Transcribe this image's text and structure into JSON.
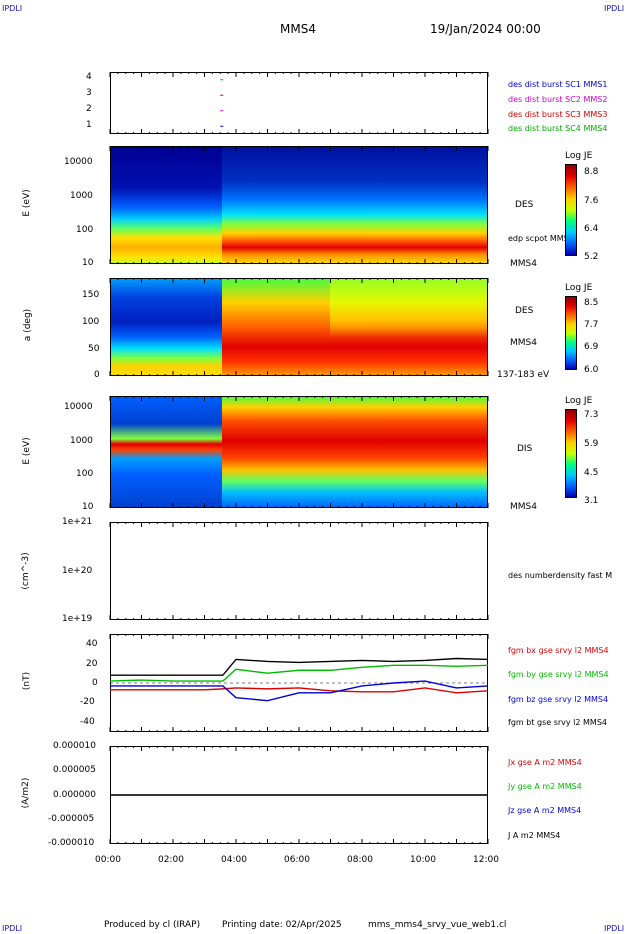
{
  "corners": {
    "top_left": "IPDLI",
    "top_right": "IPDLI",
    "bottom_left": "IPDLI",
    "bottom_right": "IPDLI"
  },
  "header": {
    "spacecraft": "MMS4",
    "date": "19/Jan/2024 00:00"
  },
  "footer": {
    "produced": "Produced by cl (IRAP)",
    "printed": "Printing date: 02/Apr/2025",
    "file": "mms_mms4_srvy_vue_web1.cl"
  },
  "panels": {
    "p1": {
      "yticks": [
        "4",
        "3",
        "2",
        "1"
      ],
      "legend": [
        {
          "text": "des dist burst SC1 MMS1",
          "color": "#0000cc"
        },
        {
          "text": "des dist burst SC2 MMS2",
          "color": "#cc00cc"
        },
        {
          "text": "des dist burst SC3 MMS3",
          "color": "#cc0000"
        },
        {
          "text": "des dist burst SC4 MMS4",
          "color": "#00aa00"
        }
      ]
    },
    "p2": {
      "ylabel": "E (eV)",
      "yticks": [
        "10000",
        "1000",
        "100",
        "10"
      ],
      "label_species": "DES",
      "label_extra": "edp scpot MMS4",
      "label_sc": "MMS4",
      "colorbar": {
        "title": "Log JE",
        "ticks": [
          "8.8",
          "7.6",
          "6.4",
          "5.2"
        ]
      }
    },
    "p3": {
      "ylabel": "a (deg)",
      "yticks": [
        "150",
        "100",
        "50",
        "0"
      ],
      "label_species": "DES",
      "label_sc": "MMS4",
      "label_range": "137-183 eV",
      "colorbar": {
        "title": "Log JE",
        "ticks": [
          "8.5",
          "7.7",
          "6.9",
          "6.0"
        ]
      }
    },
    "p4": {
      "ylabel": "E (eV)",
      "yticks": [
        "10000",
        "1000",
        "100",
        "10"
      ],
      "label_species": "DIS",
      "label_sc": "MMS4",
      "colorbar": {
        "title": "Log JE",
        "ticks": [
          "7.3",
          "5.9",
          "4.5",
          "3.1"
        ]
      }
    },
    "p5": {
      "ylabel": "(cm^-3)",
      "yticks": [
        "1e+21",
        "1e+20",
        "1e+19"
      ],
      "legend": [
        {
          "text": "des numberdensity fast M",
          "color": "#000000"
        }
      ]
    },
    "p6": {
      "ylabel": "(nT)",
      "yticks": [
        "40",
        "20",
        "0",
        "-20",
        "-40"
      ],
      "legend": [
        {
          "text": "fgm bx gse srvy l2 MMS4",
          "color": "#dd0000"
        },
        {
          "text": "fgm by gse srvy l2 MMS4",
          "color": "#00bb00"
        },
        {
          "text": "fgm bz gse srvy l2 MMS4",
          "color": "#0000dd"
        },
        {
          "text": "fgm bt gse srvy l2 MMS4",
          "color": "#000000"
        }
      ]
    },
    "p7": {
      "ylabel": "(A/m2)",
      "yticks": [
        "0.000010",
        "0.000005",
        "0.000000",
        "-0.000005",
        "-0.000010"
      ],
      "legend": [
        {
          "text": "Jx gse A m2 MMS4",
          "color": "#dd0000"
        },
        {
          "text": "Jy gse A m2 MMS4",
          "color": "#00bb00"
        },
        {
          "text": "Jz gse A m2 MMS4",
          "color": "#0000dd"
        },
        {
          "text": "J A m2 MMS4",
          "color": "#000000"
        }
      ]
    }
  },
  "xticks": [
    "00:00",
    "02:00",
    "04:00",
    "06:00",
    "08:00",
    "10:00",
    "12:00"
  ],
  "chart_data": [
    {
      "type": "scatter",
      "x_label": "time",
      "x_range": [
        "00:00",
        "12:00"
      ],
      "ylim": [
        0.5,
        4.5
      ],
      "series": [
        {
          "name": "des dist burst SC1 MMS1",
          "x": [
            "03:30"
          ],
          "y": [
            1
          ]
        },
        {
          "name": "des dist burst SC2 MMS2",
          "x": [
            "03:30"
          ],
          "y": [
            2
          ]
        },
        {
          "name": "des dist burst SC3 MMS3",
          "x": [
            "03:30"
          ],
          "y": [
            3
          ]
        },
        {
          "name": "des dist burst SC4 MMS4",
          "x": [
            "03:30"
          ],
          "y": [
            4
          ]
        }
      ]
    },
    {
      "type": "heatmap",
      "title": "DES",
      "ylabel": "E (eV)",
      "yscale": "log",
      "ylim": [
        10,
        20000
      ],
      "x_range": [
        "00:00",
        "12:00"
      ],
      "colorbar": {
        "label": "Log JE",
        "range": [
          5.2,
          8.8
        ]
      },
      "boundary_time": "03:35",
      "peak_energy_before": 50,
      "peak_energy_after": 90
    },
    {
      "type": "heatmap",
      "title": "DES",
      "ylabel": "a (deg)",
      "ylim": [
        0,
        180
      ],
      "x_range": [
        "00:00",
        "12:00"
      ],
      "colorbar": {
        "label": "Log JE",
        "range": [
          6.0,
          8.5
        ]
      },
      "energy_range": "137-183 eV",
      "boundary_time": "03:35"
    },
    {
      "type": "heatmap",
      "title": "DIS",
      "ylabel": "E (eV)",
      "yscale": "log",
      "ylim": [
        10,
        20000
      ],
      "x_range": [
        "00:00",
        "12:00"
      ],
      "colorbar": {
        "label": "Log JE",
        "range": [
          3.1,
          7.3
        ]
      },
      "boundary_time": "03:35",
      "peak_energy_before": 700,
      "peak_energy_after": 1000
    },
    {
      "type": "line",
      "ylabel": "(cm^-3)",
      "yscale": "log",
      "ylim": [
        1e+19,
        1e+21
      ],
      "series": [
        {
          "name": "des numberdensity fast M",
          "x": [],
          "y": []
        }
      ]
    },
    {
      "type": "line",
      "ylabel": "(nT)",
      "ylim": [
        -50,
        50
      ],
      "x": [
        "00:00",
        "01:00",
        "02:00",
        "03:00",
        "03:35",
        "04:00",
        "05:00",
        "06:00",
        "07:00",
        "08:00",
        "09:00",
        "10:00",
        "11:00",
        "12:00"
      ],
      "series": [
        {
          "name": "fgm bx gse srvy l2 MMS4",
          "values": [
            -7,
            -7,
            -7,
            -7,
            -6,
            -5,
            -6,
            -5,
            -8,
            -9,
            -9,
            -5,
            -10,
            -8
          ]
        },
        {
          "name": "fgm by gse srvy l2 MMS4",
          "values": [
            2,
            3,
            2,
            2,
            2,
            14,
            10,
            13,
            13,
            16,
            18,
            18,
            17,
            18
          ]
        },
        {
          "name": "fgm bz gse srvy l2 MMS4",
          "values": [
            -3,
            -3,
            -3,
            -3,
            -3,
            -15,
            -18,
            -10,
            -10,
            -3,
            0,
            2,
            -5,
            -3
          ]
        },
        {
          "name": "fgm bt gse srvy l2 MMS4",
          "values": [
            8,
            8,
            8,
            8,
            8,
            24,
            22,
            21,
            22,
            23,
            22,
            23,
            25,
            24
          ]
        }
      ]
    },
    {
      "type": "line",
      "ylabel": "(A/m2)",
      "ylim": [
        -1e-05,
        1e-05
      ],
      "x": [
        "00:00",
        "02:00",
        "04:00",
        "06:00",
        "08:00",
        "10:00",
        "12:00"
      ],
      "series": [
        {
          "name": "Jx gse A m2 MMS4",
          "values": [
            0,
            0,
            0,
            0,
            0,
            0,
            0
          ]
        },
        {
          "name": "Jy gse A m2 MMS4",
          "values": [
            0,
            0,
            0,
            0,
            0,
            0,
            0
          ]
        },
        {
          "name": "Jz gse A m2 MMS4",
          "values": [
            0,
            0,
            0,
            0,
            0,
            0,
            0
          ]
        },
        {
          "name": "J A m2 MMS4",
          "values": [
            0,
            0,
            0,
            0,
            0,
            0,
            0
          ]
        }
      ]
    }
  ]
}
